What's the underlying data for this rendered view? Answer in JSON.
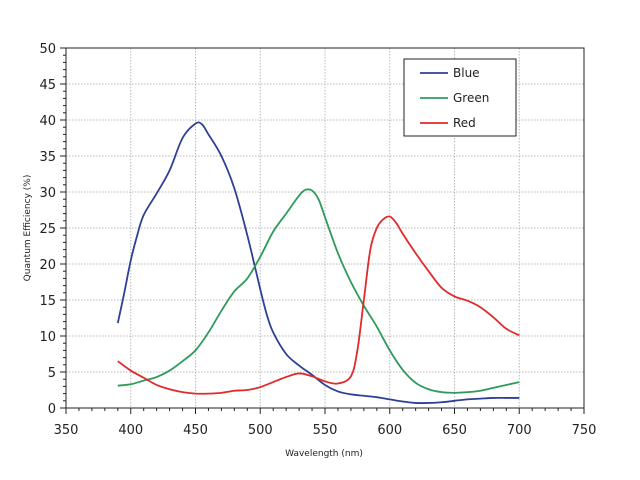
{
  "chart_data": {
    "type": "line",
    "title": "",
    "xlabel": "Wavelength (nm)",
    "ylabel": "Quantum Efficiency (%)",
    "xlim": [
      350,
      750
    ],
    "ylim": [
      0,
      50
    ],
    "x_ticks": [
      350,
      400,
      450,
      500,
      550,
      600,
      650,
      700,
      750
    ],
    "y_ticks": [
      0,
      5,
      10,
      15,
      20,
      25,
      30,
      35,
      40,
      45,
      50
    ],
    "grid": true,
    "legend_position": "top-right",
    "series": [
      {
        "name": "Blue",
        "color": "#2f3f97",
        "points": [
          [
            390,
            11.8
          ],
          [
            395,
            16
          ],
          [
            400,
            20.5
          ],
          [
            405,
            24
          ],
          [
            410,
            26.8
          ],
          [
            420,
            29.8
          ],
          [
            430,
            33
          ],
          [
            440,
            37.5
          ],
          [
            450,
            39.5
          ],
          [
            455,
            39.4
          ],
          [
            460,
            38
          ],
          [
            470,
            35
          ],
          [
            480,
            30.5
          ],
          [
            490,
            24
          ],
          [
            500,
            16.5
          ],
          [
            505,
            13
          ],
          [
            510,
            10.5
          ],
          [
            520,
            7.5
          ],
          [
            530,
            5.9
          ],
          [
            540,
            4.6
          ],
          [
            550,
            3.2
          ],
          [
            560,
            2.3
          ],
          [
            570,
            1.9
          ],
          [
            580,
            1.7
          ],
          [
            590,
            1.5
          ],
          [
            600,
            1.2
          ],
          [
            610,
            0.9
          ],
          [
            620,
            0.7
          ],
          [
            630,
            0.7
          ],
          [
            640,
            0.8
          ],
          [
            650,
            1
          ],
          [
            660,
            1.2
          ],
          [
            670,
            1.3
          ],
          [
            680,
            1.4
          ],
          [
            690,
            1.4
          ],
          [
            700,
            1.4
          ]
        ]
      },
      {
        "name": "Green",
        "color": "#2e9a5b",
        "points": [
          [
            390,
            3.1
          ],
          [
            400,
            3.3
          ],
          [
            410,
            3.8
          ],
          [
            420,
            4.3
          ],
          [
            430,
            5.2
          ],
          [
            440,
            6.5
          ],
          [
            450,
            8
          ],
          [
            460,
            10.5
          ],
          [
            470,
            13.5
          ],
          [
            480,
            16.2
          ],
          [
            490,
            18
          ],
          [
            500,
            21
          ],
          [
            510,
            24.5
          ],
          [
            520,
            27
          ],
          [
            530,
            29.5
          ],
          [
            535,
            30.3
          ],
          [
            540,
            30.2
          ],
          [
            545,
            29
          ],
          [
            550,
            26.5
          ],
          [
            560,
            21.5
          ],
          [
            570,
            17.5
          ],
          [
            580,
            14.2
          ],
          [
            590,
            11.3
          ],
          [
            600,
            8
          ],
          [
            610,
            5.3
          ],
          [
            620,
            3.5
          ],
          [
            630,
            2.6
          ],
          [
            640,
            2.2
          ],
          [
            650,
            2.1
          ],
          [
            660,
            2.2
          ],
          [
            670,
            2.4
          ],
          [
            680,
            2.8
          ],
          [
            690,
            3.2
          ],
          [
            700,
            3.6
          ]
        ]
      },
      {
        "name": "Red",
        "color": "#e12a2a",
        "points": [
          [
            390,
            6.5
          ],
          [
            400,
            5.2
          ],
          [
            410,
            4.2
          ],
          [
            420,
            3.2
          ],
          [
            430,
            2.6
          ],
          [
            440,
            2.2
          ],
          [
            450,
            2
          ],
          [
            460,
            2
          ],
          [
            470,
            2.1
          ],
          [
            480,
            2.4
          ],
          [
            490,
            2.5
          ],
          [
            500,
            2.9
          ],
          [
            510,
            3.6
          ],
          [
            520,
            4.3
          ],
          [
            530,
            4.8
          ],
          [
            540,
            4.4
          ],
          [
            550,
            3.7
          ],
          [
            560,
            3.4
          ],
          [
            570,
            4.4
          ],
          [
            575,
            8
          ],
          [
            580,
            15
          ],
          [
            585,
            22
          ],
          [
            590,
            25
          ],
          [
            595,
            26.2
          ],
          [
            600,
            26.6
          ],
          [
            605,
            25.7
          ],
          [
            610,
            24.2
          ],
          [
            620,
            21.5
          ],
          [
            630,
            19
          ],
          [
            640,
            16.7
          ],
          [
            650,
            15.5
          ],
          [
            660,
            14.9
          ],
          [
            670,
            14
          ],
          [
            680,
            12.6
          ],
          [
            690,
            11
          ],
          [
            700,
            10.1
          ]
        ]
      }
    ]
  }
}
